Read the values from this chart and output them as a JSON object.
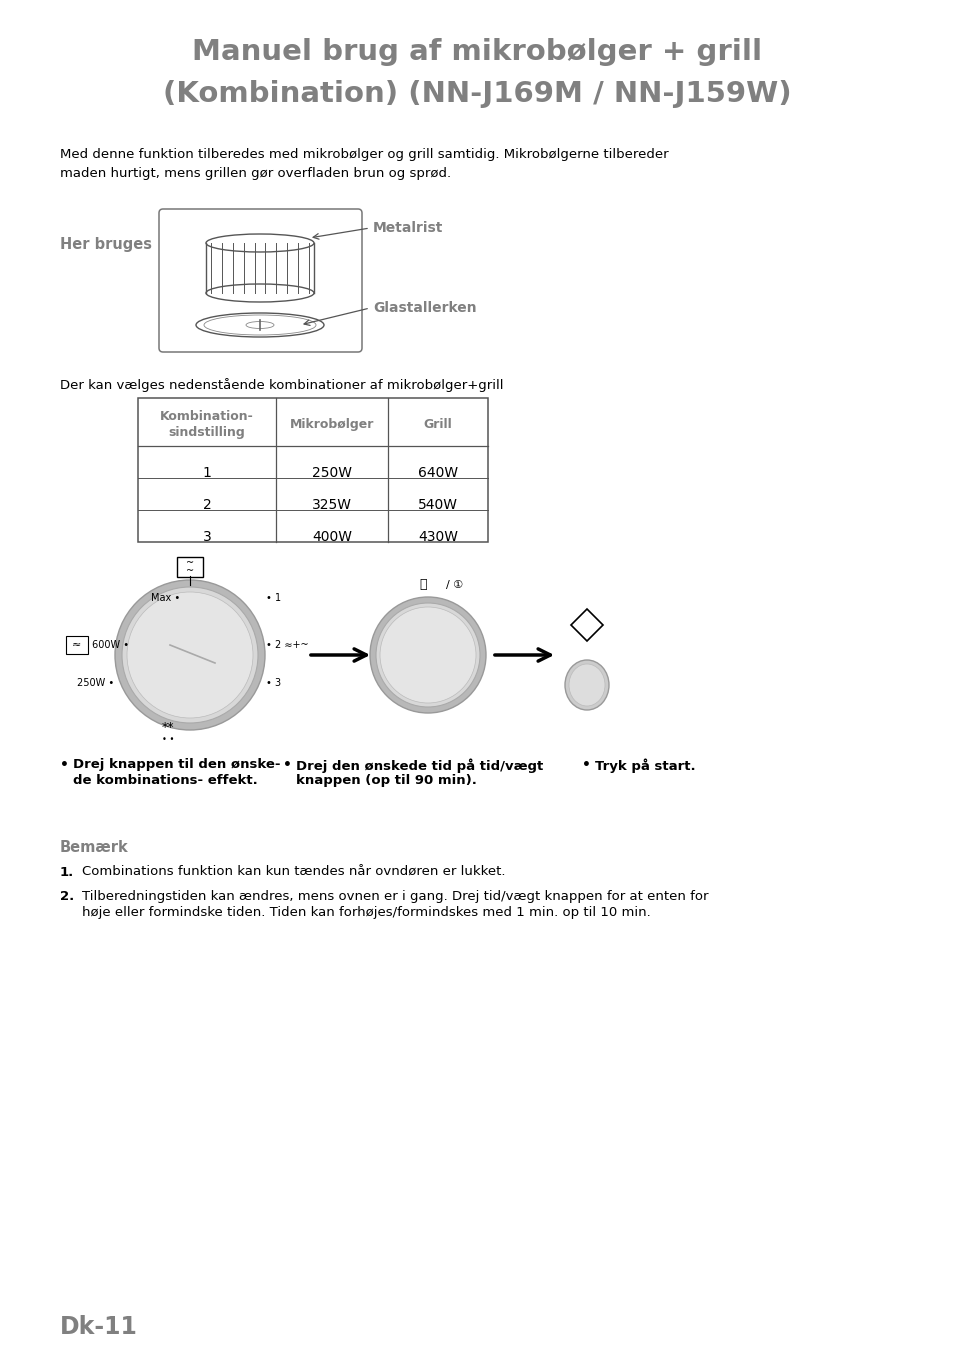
{
  "title_line1": "Manuel brug af mikrobølger + grill",
  "title_line2": "(Kombination) (NN-J169M / NN-J159W)",
  "title_color": "#808080",
  "title_fontsize": 22,
  "body_color": "#000000",
  "gray_color": "#808080",
  "bg_color": "#ffffff",
  "intro_text": "Med denne funktion tilberedes med mikrobølger og grill samtidig. Mikrobølgerne tilbereder\nmaden hurtigt, mens grillen gør overfladen brun og sprød.",
  "her_bruges": "Her bruges",
  "metalrist": "Metalrist",
  "glastallerken": "Glastallerken",
  "table_intro": "Der kan vælges nedenstående kombinationer af mikrobølger+grill",
  "table_headers_col0a": "Kombination-",
  "table_headers_col0b": "sindstilling",
  "table_headers_col1": "Mikrobølger",
  "table_headers_col2": "Grill",
  "table_rows": [
    [
      "1",
      "250W",
      "640W"
    ],
    [
      "2",
      "325W",
      "540W"
    ],
    [
      "3",
      "400W",
      "430W"
    ]
  ],
  "bullet1a": "Drej knappen til den ønske-",
  "bullet1b": "de kombinations- effekt.",
  "bullet2a": "Drej den ønskede tid på tid/vægt",
  "bullet2b": "knappen (op til 90 min).",
  "bullet3": "Tryk på start.",
  "bemærk_title": "Bemærk",
  "note1": "Combinations funktion kan kun tændes når ovndøren er lukket.",
  "note2a": "Tilberedningstiden kan ændres, mens ovnen er i gang. Drej tid/vægt knappen for at enten for",
  "note2b": "høje eller formindske tiden. Tiden kan forhøjes/formindskes med 1 min. op til 10 min.",
  "footer": "Dk-11"
}
